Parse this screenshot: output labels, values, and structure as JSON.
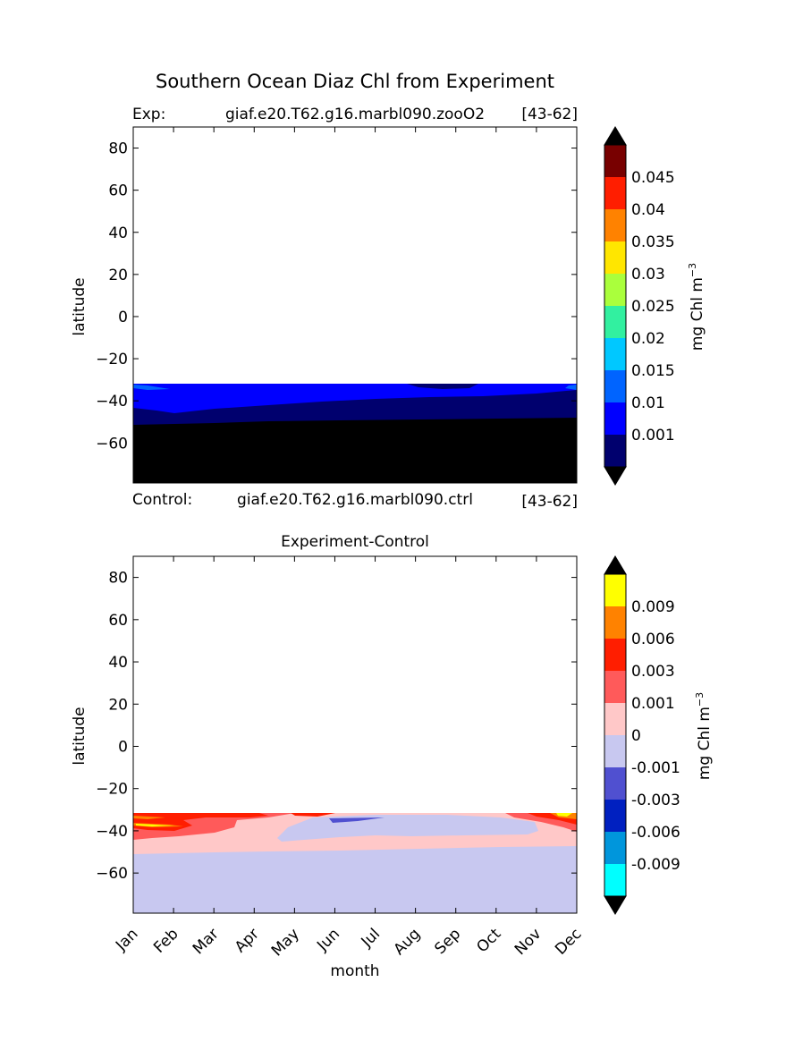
{
  "title": "Southern Ocean Diaz Chl from Experiment",
  "exp_label": "Exp:",
  "exp_case": "giaf.e20.T62.g16.marbl090.zooO2",
  "exp_range": "[43-62]",
  "ctrl_label": "Control:",
  "ctrl_case": "giaf.e20.T62.g16.marbl090.ctrl",
  "ctrl_range": "[43-62]",
  "colors": {
    "top_levels": [
      "#00006e",
      "#0000ff",
      "#0064ff",
      "#00c8ff",
      "#32f0a0",
      "#aaff3c",
      "#ffe600",
      "#ff8200",
      "#ff1e00",
      "#780000"
    ],
    "top_under": "#000000",
    "top_over": "#000000",
    "bot_levels": [
      "#00ffff",
      "#0096dc",
      "#0020c0",
      "#5050d0",
      "#c8c8f0",
      "#ffc8c8",
      "#ff5a5a",
      "#ff1e00",
      "#ff8200",
      "#ffff00"
    ],
    "bot_under": "#000000",
    "bot_over": "#000000",
    "top_region_black": "#000000",
    "top_region_dark": "#00006e",
    "top_region_blue": "#0000ff",
    "top_region_light": "#0064ff",
    "bot_region_base": "#c8c8f0",
    "bot_region_pink": "#ffc8c8",
    "bot_region_red": "#ff5a5a",
    "bot_region_deep": "#ff1e00",
    "bot_region_orange": "#ff8200",
    "bot_region_yellow": "#ffff00",
    "bot_region_purple": "#5050d0"
  },
  "chart_data": [
    {
      "type": "contour",
      "title": "",
      "xlabel": "",
      "ylabel": "latitude",
      "x_categories": [
        "Jan",
        "Feb",
        "Mar",
        "Apr",
        "May",
        "Jun",
        "Jul",
        "Aug",
        "Sep",
        "Oct",
        "Nov",
        "Dec"
      ],
      "xlim": [
        1,
        12
      ],
      "ylim": [
        -79,
        90
      ],
      "yticks": [
        "80",
        "60",
        "40",
        "20",
        "0",
        "−20",
        "−40",
        "−60"
      ],
      "ytick_values": [
        80,
        60,
        40,
        20,
        0,
        -20,
        -40,
        -60
      ],
      "data_extent_lat": [
        -79,
        -31
      ],
      "colorbar": {
        "label": "mg Chl m",
        "label_sup": "−3",
        "ticks": [
          "0.001",
          "0.01",
          "0.015",
          "0.02",
          "0.025",
          "0.03",
          "0.035",
          "0.04",
          "0.045"
        ],
        "extend": "both"
      }
    },
    {
      "type": "contour",
      "title": "Experiment-Control",
      "xlabel": "month",
      "ylabel": "latitude",
      "x_categories": [
        "Jan",
        "Feb",
        "Mar",
        "Apr",
        "May",
        "Jun",
        "Jul",
        "Aug",
        "Sep",
        "Oct",
        "Nov",
        "Dec"
      ],
      "xlim": [
        1,
        12
      ],
      "ylim": [
        -79,
        90
      ],
      "yticks": [
        "80",
        "60",
        "40",
        "20",
        "0",
        "−20",
        "−40",
        "−60"
      ],
      "ytick_values": [
        80,
        60,
        40,
        20,
        0,
        -20,
        -40,
        -60
      ],
      "data_extent_lat": [
        -79,
        -31
      ],
      "colorbar": {
        "label": "mg Chl m",
        "label_sup": "−3",
        "ticks": [
          "-0.009",
          "-0.006",
          "-0.003",
          "-0.001",
          "0",
          "0.001",
          "0.003",
          "0.006",
          "0.009"
        ],
        "extend": "both"
      }
    }
  ]
}
